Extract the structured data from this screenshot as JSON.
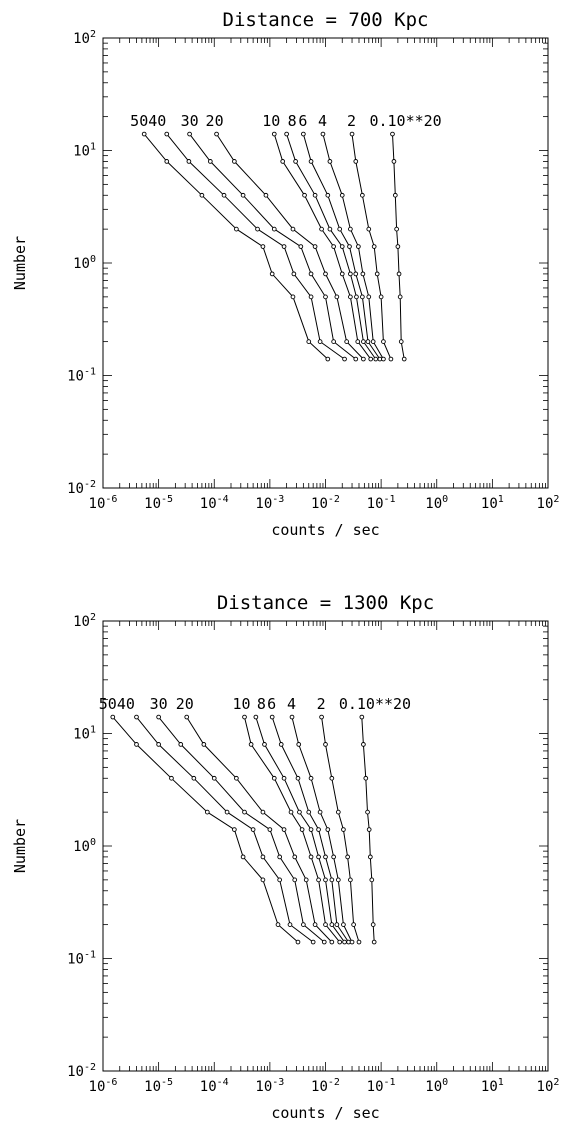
{
  "chart_data": [
    {
      "type": "line",
      "title": "Distance = 700 Kpc",
      "xlabel": "counts / sec",
      "ylabel": "Number",
      "x_scale": "log",
      "y_scale": "log",
      "xlim": [
        1e-06,
        100
      ],
      "ylim": [
        0.01,
        100
      ],
      "x_tick_labels": [
        "10^-6",
        "10^-5",
        "10^-4",
        "10^-3",
        "10^-2",
        "10^-1",
        "10^0",
        "10^1",
        "10^2"
      ],
      "y_tick_labels": [
        "10^-2",
        "10^-1",
        "10^0",
        "10^1",
        "10^2"
      ],
      "curve_labels": [
        "50",
        "40",
        "30",
        "20",
        "10",
        "8",
        "6",
        "4",
        "2",
        "0.1",
        "0**2"
      ],
      "curve_label_text": [
        "5040",
        "30",
        "20",
        "10",
        "8",
        "6",
        "4",
        "2",
        "0.10**20"
      ],
      "y": [
        14,
        8,
        4,
        2,
        1.4,
        0.8,
        0.5,
        0.2,
        0.14
      ],
      "series": [
        {
          "label": "50",
          "x": [
            5.5e-06,
            1.4e-05,
            6e-05,
            0.00025,
            0.00075,
            0.0011,
            0.0026,
            0.005,
            0.011
          ]
        },
        {
          "label": "40",
          "x": [
            1.4e-05,
            3.5e-05,
            0.00015,
            0.0006,
            0.0018,
            0.0027,
            0.0055,
            0.008,
            0.022
          ]
        },
        {
          "label": "30",
          "x": [
            3.6e-05,
            8.5e-05,
            0.00033,
            0.0012,
            0.0036,
            0.0055,
            0.01,
            0.014,
            0.035
          ]
        },
        {
          "label": "20",
          "x": [
            0.00011,
            0.00023,
            0.00085,
            0.0026,
            0.0065,
            0.01,
            0.016,
            0.024,
            0.048
          ]
        },
        {
          "label": "10",
          "x": [
            0.0012,
            0.0017,
            0.0042,
            0.0085,
            0.014,
            0.02,
            0.028,
            0.038,
            0.065
          ]
        },
        {
          "label": "8",
          "x": [
            0.002,
            0.0029,
            0.0065,
            0.012,
            0.02,
            0.028,
            0.036,
            0.048,
            0.08
          ]
        },
        {
          "label": "6",
          "x": [
            0.004,
            0.0055,
            0.011,
            0.018,
            0.027,
            0.035,
            0.046,
            0.058,
            0.095
          ]
        },
        {
          "label": "4",
          "x": [
            0.009,
            0.012,
            0.02,
            0.028,
            0.039,
            0.047,
            0.06,
            0.072,
            0.11
          ]
        },
        {
          "label": "2",
          "x": [
            0.03,
            0.035,
            0.046,
            0.06,
            0.075,
            0.085,
            0.1,
            0.11,
            0.15
          ]
        },
        {
          "label": "0.1",
          "x": [
            0.16,
            0.17,
            0.18,
            0.19,
            0.2,
            0.21,
            0.22,
            0.23,
            0.26
          ]
        }
      ]
    },
    {
      "type": "line",
      "title": "Distance = 1300 Kpc",
      "xlabel": "counts / sec",
      "ylabel": "Number",
      "x_scale": "log",
      "y_scale": "log",
      "xlim": [
        1e-06,
        100
      ],
      "ylim": [
        0.01,
        100
      ],
      "x_tick_labels": [
        "10^-6",
        "10^-5",
        "10^-4",
        "10^-3",
        "10^-2",
        "10^-1",
        "10^0",
        "10^1",
        "10^2"
      ],
      "y_tick_labels": [
        "10^-2",
        "10^-1",
        "10^0",
        "10^1",
        "10^2"
      ],
      "curve_labels": [
        "50",
        "40",
        "30",
        "20",
        "10",
        "8",
        "6",
        "4",
        "2",
        "0.1",
        "0**2"
      ],
      "curve_label_text": [
        "5040",
        "30",
        "20",
        "10",
        "8",
        "6",
        "4",
        "2",
        "0.10**20"
      ],
      "y": [
        14,
        8,
        4,
        2,
        1.4,
        0.8,
        0.5,
        0.2,
        0.14
      ],
      "series": [
        {
          "label": "50",
          "x": [
            1.5e-06,
            4e-06,
            1.7e-05,
            7.5e-05,
            0.00023,
            0.00033,
            0.00075,
            0.0014,
            0.0032
          ]
        },
        {
          "label": "40",
          "x": [
            4e-06,
            1e-05,
            4.3e-05,
            0.00017,
            0.0005,
            0.00075,
            0.0015,
            0.0023,
            0.006
          ]
        },
        {
          "label": "30",
          "x": [
            1e-05,
            2.5e-05,
            0.0001,
            0.00035,
            0.001,
            0.0015,
            0.0028,
            0.004,
            0.0095
          ]
        },
        {
          "label": "20",
          "x": [
            3.2e-05,
            6.5e-05,
            0.00025,
            0.00075,
            0.0018,
            0.0028,
            0.0045,
            0.0065,
            0.013
          ]
        },
        {
          "label": "10",
          "x": [
            0.00035,
            0.00046,
            0.0012,
            0.0024,
            0.0038,
            0.0055,
            0.0075,
            0.01,
            0.018
          ]
        },
        {
          "label": "8",
          "x": [
            0.00056,
            0.0008,
            0.0018,
            0.0034,
            0.0055,
            0.0075,
            0.01,
            0.013,
            0.022
          ]
        },
        {
          "label": "6",
          "x": [
            0.0011,
            0.0016,
            0.0032,
            0.005,
            0.0075,
            0.01,
            0.013,
            0.016,
            0.026
          ]
        },
        {
          "label": "4",
          "x": [
            0.0025,
            0.0033,
            0.0055,
            0.008,
            0.011,
            0.014,
            0.017,
            0.021,
            0.03
          ]
        },
        {
          "label": "2",
          "x": [
            0.0085,
            0.01,
            0.013,
            0.017,
            0.021,
            0.025,
            0.028,
            0.032,
            0.04
          ]
        },
        {
          "label": "0.1",
          "x": [
            0.045,
            0.048,
            0.053,
            0.057,
            0.061,
            0.064,
            0.068,
            0.072,
            0.075
          ]
        }
      ]
    }
  ]
}
